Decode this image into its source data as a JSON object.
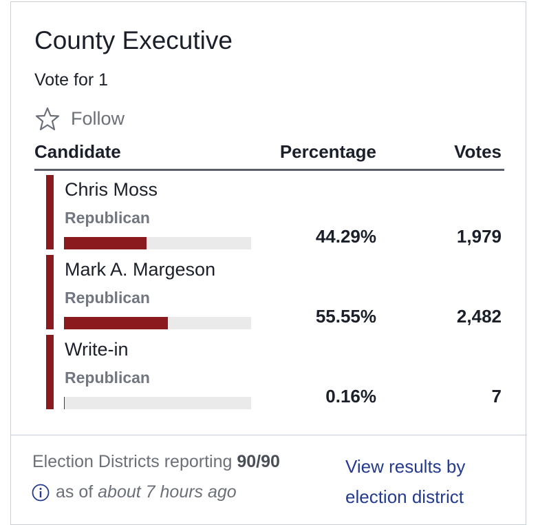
{
  "header": {
    "title": "County Executive",
    "subtitle": "Vote for 1",
    "follow": "Follow"
  },
  "table": {
    "columns": [
      "Candidate",
      "Percentage",
      "Votes"
    ],
    "rows": [
      {
        "name": "Chris Moss",
        "party": "Republican",
        "percentage": {
          "value": 44.29,
          "label": "44.29%"
        },
        "votes": "1,979"
      },
      {
        "name": "Mark A. Margeson",
        "party": "Republican",
        "percentage": {
          "value": 55.55,
          "label": "55.55%"
        },
        "votes": "2,482"
      },
      {
        "name": "Write-in",
        "party": "Republican",
        "percentage": {
          "value": 0.16,
          "label": "0.16%"
        },
        "votes": "7"
      }
    ]
  },
  "footer": {
    "reporting_label": "Election Districts reporting",
    "reporting_value": "90/90",
    "as_of_label": "as of",
    "as_of_value": "about 7 hours ago",
    "link": "View results by election district"
  }
}
